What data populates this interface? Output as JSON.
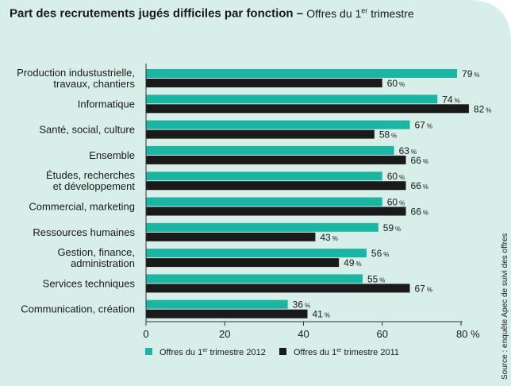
{
  "chart_data": {
    "type": "bar",
    "orientation": "horizontal",
    "title": "Part des recrutements jugés difficiles par fonction",
    "subtitle_parts": [
      "Offres du 1",
      "er",
      " trimestre"
    ],
    "categories": [
      [
        "Production industustrielle,",
        "travaux, chantiers"
      ],
      [
        "Informatique"
      ],
      [
        "Santé, social, culture"
      ],
      [
        "Ensemble"
      ],
      [
        "Études, recherches",
        "et développement"
      ],
      [
        "Commercial, marketing"
      ],
      [
        "Ressources humaines"
      ],
      [
        "Gestion, finance,",
        "administration"
      ],
      [
        "Services techniques"
      ],
      [
        "Communication, création"
      ]
    ],
    "series": [
      {
        "name_parts": [
          "Offres du 1",
          "er",
          " trimestre 2012"
        ],
        "color": "#1bb5a4",
        "values": [
          79,
          74,
          67,
          63,
          60,
          60,
          59,
          56,
          55,
          36
        ]
      },
      {
        "name_parts": [
          "Offres du 1",
          "er",
          " trimestre 2011"
        ],
        "color": "#1a1a1a",
        "values": [
          60,
          82,
          58,
          66,
          66,
          66,
          43,
          49,
          67,
          41
        ]
      }
    ],
    "value_suffix": "%",
    "xlim": [
      0,
      80
    ],
    "ticks": [
      "0",
      "20",
      "40",
      "60",
      "80 %"
    ],
    "tick_values": [
      0,
      20,
      40,
      60,
      80
    ],
    "legend_position": "bottom-left",
    "grid": false,
    "source": "Source : enquête Apec de suivi des offres"
  },
  "colors": {
    "background_panel": "#d8eee8",
    "accent": "#1bb5a4",
    "dark": "#1a1a1a"
  }
}
